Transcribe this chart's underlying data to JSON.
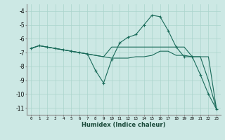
{
  "xlabel": "Humidex (Indice chaleur)",
  "bg_color": "#cce8e4",
  "grid_color": "#aad4cc",
  "line_color": "#1a6b5a",
  "xlim": [
    -0.5,
    23.5
  ],
  "ylim": [
    -11.5,
    -3.5
  ],
  "xticks": [
    0,
    1,
    2,
    3,
    4,
    5,
    6,
    7,
    8,
    9,
    10,
    11,
    12,
    13,
    14,
    15,
    16,
    17,
    18,
    19,
    20,
    21,
    22,
    23
  ],
  "yticks": [
    -4,
    -5,
    -6,
    -7,
    -8,
    -9,
    -10,
    -11
  ],
  "line1_x": [
    0,
    1,
    2,
    3,
    4,
    5,
    6,
    7,
    8,
    9,
    10,
    11,
    12,
    13,
    14,
    15,
    16,
    17,
    18,
    19,
    20,
    21,
    22,
    23
  ],
  "line1_y": [
    -6.7,
    -6.5,
    -6.6,
    -6.7,
    -6.8,
    -6.9,
    -7.0,
    -7.1,
    -8.3,
    -9.2,
    -7.5,
    -6.3,
    -5.9,
    -5.7,
    -5.0,
    -4.3,
    -4.4,
    -5.4,
    -6.6,
    -7.3,
    -7.3,
    -8.6,
    -10.0,
    -11.1
  ],
  "line2_x": [
    0,
    1,
    2,
    3,
    4,
    5,
    6,
    7,
    8,
    9,
    10,
    11,
    12,
    13,
    14,
    15,
    16,
    17,
    18,
    19,
    20,
    21,
    22,
    23
  ],
  "line2_y": [
    -6.7,
    -6.5,
    -6.6,
    -6.7,
    -6.8,
    -6.9,
    -7.0,
    -7.1,
    -7.2,
    -7.3,
    -6.6,
    -6.6,
    -6.6,
    -6.6,
    -6.6,
    -6.6,
    -6.6,
    -6.6,
    -6.6,
    -6.6,
    -7.3,
    -7.3,
    -7.3,
    -11.1
  ],
  "line3_x": [
    0,
    1,
    2,
    3,
    4,
    5,
    6,
    7,
    8,
    9,
    10,
    11,
    12,
    13,
    14,
    15,
    16,
    17,
    18,
    19,
    20,
    21,
    22,
    23
  ],
  "line3_y": [
    -6.7,
    -6.5,
    -6.6,
    -6.7,
    -6.8,
    -6.9,
    -7.0,
    -7.1,
    -7.2,
    -7.3,
    -7.4,
    -7.4,
    -7.4,
    -7.3,
    -7.3,
    -7.2,
    -6.9,
    -6.9,
    -7.2,
    -7.2,
    -7.3,
    -7.3,
    -9.0,
    -11.1
  ]
}
